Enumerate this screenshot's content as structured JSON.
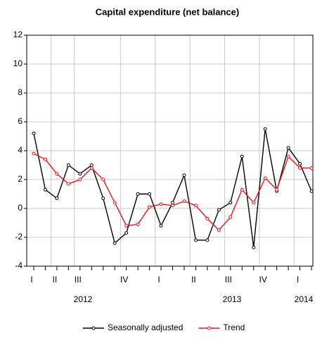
{
  "chart_data": {
    "type": "line",
    "title": "Capital expenditure (net balance)",
    "categories": [
      "I",
      null,
      "II",
      null,
      "III",
      null,
      null,
      null,
      "IV",
      null,
      null,
      "I",
      null,
      null,
      "II",
      null,
      null,
      "III",
      null,
      null,
      "IV",
      null,
      null,
      "I",
      null
    ],
    "years": [
      "2012",
      "2013",
      "2014"
    ],
    "series": [
      {
        "name": "Seasonally adjusted",
        "color": "#000000",
        "values": [
          5.2,
          1.3,
          0.7,
          3.0,
          2.4,
          3.0,
          0.7,
          -2.4,
          -1.7,
          1.0,
          1.0,
          -1.2,
          0.4,
          2.3,
          -2.2,
          -2.2,
          -0.1,
          0.4,
          3.6,
          -2.7,
          5.5,
          1.2,
          4.2,
          3.1,
          1.2
        ]
      },
      {
        "name": "Trend",
        "color": "#e8141c",
        "values": [
          3.8,
          3.4,
          2.4,
          1.7,
          2.0,
          2.8,
          2.0,
          0.4,
          -1.2,
          -1.1,
          0.1,
          0.3,
          0.2,
          0.5,
          0.2,
          -0.7,
          -1.5,
          -0.6,
          1.3,
          0.4,
          2.1,
          1.3,
          3.6,
          2.8,
          2.8
        ]
      }
    ],
    "ylim": [
      -4,
      12
    ],
    "yticks": [
      -4,
      -2,
      0,
      2,
      4,
      6,
      8,
      10,
      12
    ],
    "grid": true
  }
}
